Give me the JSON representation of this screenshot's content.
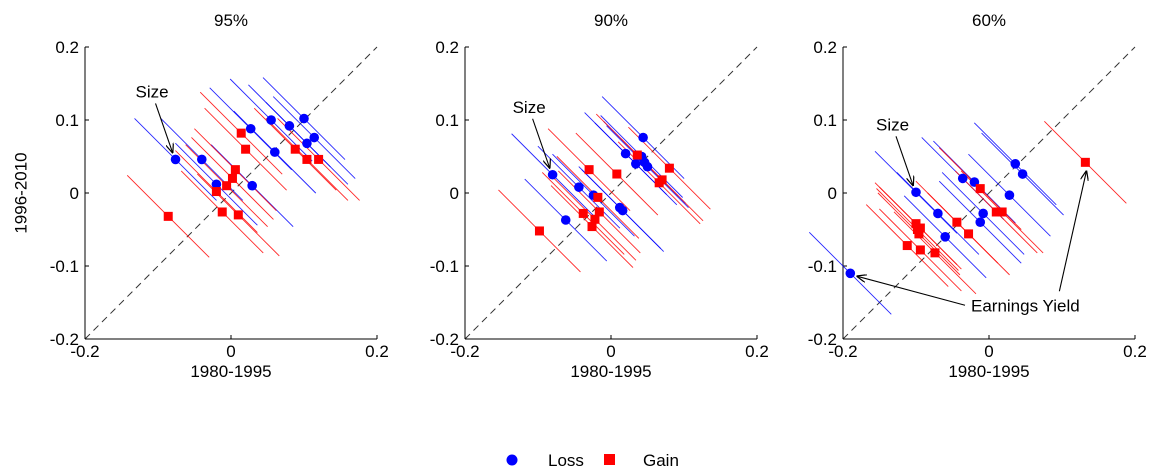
{
  "figure": {
    "legend": {
      "placement": "bottom-center",
      "entries": [
        {
          "label": "Loss",
          "marker": "circle",
          "color": "#0000ff"
        },
        {
          "label": "Gain",
          "marker": "square",
          "color": "#ff0000"
        }
      ]
    }
  },
  "chart_data": [
    {
      "type": "scatter",
      "title": "95%",
      "xlabel": "1980-1995",
      "ylabel": "1996-2010",
      "xlim": [
        -0.2,
        0.2
      ],
      "ylim": [
        -0.2,
        0.2
      ],
      "xticks": [
        -0.2,
        0,
        0.2
      ],
      "xtick_labels": [
        "-0.2",
        "0",
        "0.2"
      ],
      "yticks": [
        -0.2,
        -0.1,
        0,
        0.1,
        0.2
      ],
      "ytick_labels": [
        "-0.2",
        "-0.1",
        "0",
        "0.1",
        "0.2"
      ],
      "grid": false,
      "reference_line": "y = x (dashed)",
      "series": [
        {
          "name": "Loss",
          "color": "#0000ff",
          "marker": "circle",
          "points": [
            [
              -0.076,
              0.046
            ],
            [
              -0.04,
              0.046
            ],
            [
              -0.02,
              0.012
            ],
            [
              0.027,
              0.088
            ],
            [
              0.029,
              0.01
            ],
            [
              0.055,
              0.1
            ],
            [
              0.06,
              0.056
            ],
            [
              0.08,
              0.092
            ],
            [
              0.1,
              0.102
            ],
            [
              0.104,
              0.068
            ],
            [
              0.114,
              0.076
            ]
          ]
        },
        {
          "name": "Gain",
          "color": "#ff0000",
          "marker": "square",
          "points": [
            [
              -0.086,
              -0.032
            ],
            [
              -0.02,
              0.002
            ],
            [
              -0.012,
              -0.026
            ],
            [
              -0.006,
              0.01
            ],
            [
              0.002,
              0.02
            ],
            [
              0.006,
              0.032
            ],
            [
              0.01,
              -0.03
            ],
            [
              0.014,
              0.082
            ],
            [
              0.02,
              0.06
            ],
            [
              0.088,
              0.06
            ],
            [
              0.104,
              0.046
            ],
            [
              0.12,
              0.046
            ]
          ]
        }
      ],
      "annotations": [
        {
          "text": "Size",
          "points_to": [
            -0.076,
            0.046
          ]
        }
      ]
    },
    {
      "type": "scatter",
      "title": "90%",
      "xlabel": "1980-1995",
      "ylabel": "",
      "xlim": [
        -0.2,
        0.2
      ],
      "ylim": [
        -0.2,
        0.2
      ],
      "xticks": [
        -0.2,
        0,
        0.2
      ],
      "xtick_labels": [
        "-0.2",
        "0",
        "0.2"
      ],
      "yticks": [
        -0.2,
        -0.1,
        0,
        0.1,
        0.2
      ],
      "ytick_labels": [
        "-0.2",
        "-0.1",
        "0",
        "0.1",
        "0.2"
      ],
      "grid": false,
      "reference_line": "y = x (dashed)",
      "series": [
        {
          "name": "Loss",
          "color": "#0000ff",
          "marker": "circle",
          "points": [
            [
              -0.08,
              0.025
            ],
            [
              -0.062,
              -0.037
            ],
            [
              -0.044,
              0.008
            ],
            [
              -0.024,
              -0.003
            ],
            [
              0.012,
              -0.02
            ],
            [
              0.016,
              -0.024
            ],
            [
              0.02,
              0.054
            ],
            [
              0.034,
              0.04
            ],
            [
              0.042,
              0.05
            ],
            [
              0.044,
              0.076
            ],
            [
              0.046,
              0.042
            ],
            [
              0.05,
              0.036
            ]
          ]
        },
        {
          "name": "Gain",
          "color": "#ff0000",
          "marker": "square",
          "points": [
            [
              -0.098,
              -0.052
            ],
            [
              -0.038,
              -0.028
            ],
            [
              -0.03,
              0.032
            ],
            [
              -0.026,
              -0.046
            ],
            [
              -0.022,
              -0.036
            ],
            [
              -0.018,
              -0.006
            ],
            [
              -0.016,
              -0.026
            ],
            [
              0.008,
              0.026
            ],
            [
              0.036,
              0.052
            ],
            [
              0.066,
              0.014
            ],
            [
              0.07,
              0.018
            ],
            [
              0.08,
              0.034
            ]
          ]
        }
      ],
      "annotations": [
        {
          "text": "Size",
          "points_to": [
            -0.08,
            0.025
          ]
        }
      ]
    },
    {
      "type": "scatter",
      "title": "60%",
      "xlabel": "1980-1995",
      "ylabel": "",
      "xlim": [
        -0.2,
        0.2
      ],
      "ylim": [
        -0.2,
        0.2
      ],
      "xticks": [
        -0.2,
        0,
        0.2
      ],
      "xtick_labels": [
        "-0.2",
        "0",
        "0.2"
      ],
      "yticks": [
        -0.2,
        -0.1,
        0,
        0.1,
        0.2
      ],
      "ytick_labels": [
        "-0.2",
        "-0.1",
        "0",
        "0.1",
        "0.2"
      ],
      "grid": false,
      "reference_line": "y = x (dashed)",
      "series": [
        {
          "name": "Loss",
          "color": "#0000ff",
          "marker": "circle",
          "points": [
            [
              -0.19,
              -0.11
            ],
            [
              -0.1,
              0.001
            ],
            [
              -0.07,
              -0.028
            ],
            [
              -0.06,
              -0.06
            ],
            [
              -0.036,
              0.02
            ],
            [
              -0.02,
              0.015
            ],
            [
              -0.012,
              -0.04
            ],
            [
              -0.008,
              -0.028
            ],
            [
              0.028,
              -0.003
            ],
            [
              0.036,
              0.04
            ],
            [
              0.046,
              0.026
            ]
          ]
        },
        {
          "name": "Gain",
          "color": "#ff0000",
          "marker": "square",
          "points": [
            [
              -0.112,
              -0.072
            ],
            [
              -0.1,
              -0.042
            ],
            [
              -0.098,
              -0.05
            ],
            [
              -0.096,
              -0.056
            ],
            [
              -0.094,
              -0.048
            ],
            [
              -0.094,
              -0.078
            ],
            [
              -0.074,
              -0.082
            ],
            [
              -0.044,
              -0.04
            ],
            [
              -0.028,
              -0.056
            ],
            [
              -0.012,
              0.006
            ],
            [
              0.01,
              -0.026
            ],
            [
              0.018,
              -0.026
            ],
            [
              0.132,
              0.042
            ]
          ]
        }
      ],
      "annotations": [
        {
          "text": "Size",
          "points_to": [
            -0.1,
            0.001
          ]
        },
        {
          "text": "Earnings Yield",
          "points_to": [
            [
              -0.19,
              -0.11
            ],
            [
              0.132,
              0.042
            ]
          ]
        }
      ]
    }
  ]
}
